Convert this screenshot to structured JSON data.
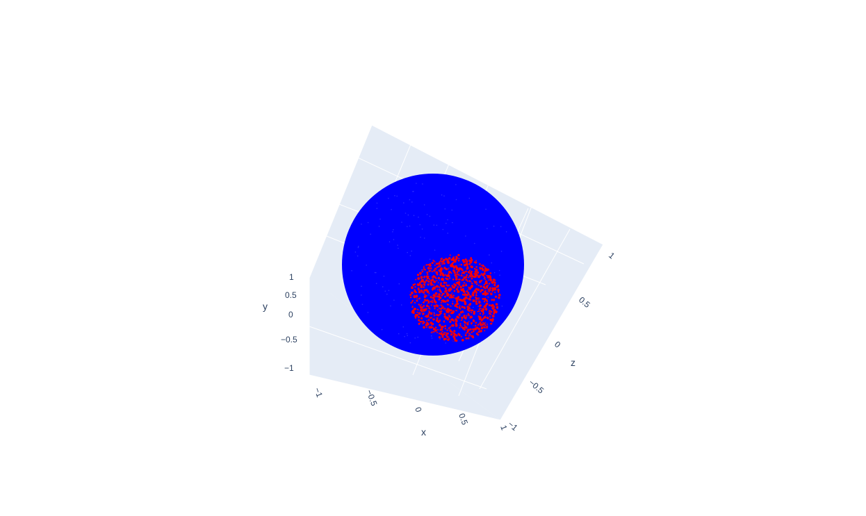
{
  "chart_data": {
    "type": "scatter3d",
    "axes": {
      "x": {
        "label": "x",
        "range": [
          -1,
          1
        ],
        "ticks": [
          "−1",
          "−0.5",
          "0",
          "0.5",
          "1"
        ]
      },
      "y": {
        "label": "y",
        "range": [
          -1,
          1
        ],
        "ticks": [
          "−1",
          "−0.5",
          "0",
          "0.5",
          "1"
        ]
      },
      "z": {
        "label": "z",
        "range": [
          -1,
          1
        ],
        "ticks": [
          "−1",
          "−0.5",
          "0",
          "0.5",
          "1"
        ]
      }
    },
    "series": [
      {
        "shape": "points on unit sphere",
        "radius": 1,
        "color": "#0000ff"
      },
      {
        "shape": "points on spherical cap",
        "color": "#ff0000"
      }
    ],
    "grid": true,
    "scene_background": "#e5ecf6"
  }
}
